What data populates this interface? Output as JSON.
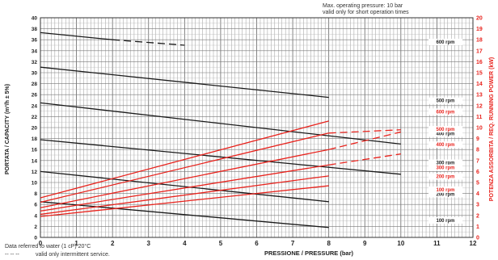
{
  "chart_data": {
    "type": "line",
    "header_note": [
      "Max. operating pressure: 10 bar",
      "valid only for short operation times"
    ],
    "xlabel": "PRESSIONE / PRESSURE (bar)",
    "ylabel_left": "PORTATA / CAPACITY (m³/h ± 5%)",
    "ylabel_right": "POTENZA ASSORBITA / REQ. RUNNING POWER (kW)",
    "footnotes": [
      "Data referred to water (1 cP) 20°C",
      "valid only intermittent service."
    ],
    "footnote_dash_glyph": "-- -- --",
    "x": {
      "min": 0,
      "max": 12,
      "ticks": [
        0,
        1,
        2,
        3,
        4,
        5,
        6,
        7,
        8,
        9,
        10,
        11,
        12
      ]
    },
    "y_left": {
      "min": 0,
      "max": 40,
      "ticks": [
        0,
        2,
        4,
        6,
        8,
        10,
        12,
        14,
        16,
        18,
        20,
        22,
        24,
        26,
        28,
        30,
        32,
        34,
        36,
        38,
        40
      ]
    },
    "y_right": {
      "min": 0,
      "max": 20,
      "ticks": [
        0,
        1,
        2,
        3,
        4,
        5,
        6,
        7,
        8,
        9,
        10,
        11,
        12,
        13,
        14,
        15,
        16,
        17,
        18,
        19,
        20
      ]
    },
    "grid": true,
    "colors": {
      "capacity": "#1a1a1a",
      "power": "#e8231d",
      "right_axis": "#e8231d",
      "grid": "#9a9a9a"
    },
    "capacity_series": [
      {
        "label": "100 rpm",
        "points": [
          [
            0,
            6.5
          ],
          [
            8,
            1.8
          ]
        ],
        "label_y": 2.8
      },
      {
        "label": "200 rpm",
        "points": [
          [
            0,
            12
          ],
          [
            8,
            6.5
          ]
        ],
        "label_y": 7.6
      },
      {
        "label": "300 rpm",
        "points": [
          [
            0,
            17.8
          ],
          [
            10,
            11.5
          ]
        ],
        "label_y": 13.3
      },
      {
        "label": "400 rpm",
        "points": [
          [
            0,
            24.5
          ],
          [
            10,
            17
          ]
        ],
        "label_y": 18.6
      },
      {
        "label": "500 rpm",
        "points": [
          [
            0,
            31
          ],
          [
            8,
            25.5
          ]
        ],
        "label_y": 24.6
      },
      {
        "label": "600 rpm",
        "points": [
          [
            0,
            37.3
          ],
          [
            2,
            36
          ],
          [
            4,
            35
          ]
        ],
        "dashed_from": 1,
        "label_y": 35.3
      }
    ],
    "power_series": [
      {
        "label": "100 rpm",
        "points": [
          [
            0,
            1.9
          ],
          [
            8,
            4.7
          ]
        ],
        "dashed_from": null,
        "label_y": 8.4
      },
      {
        "label": "200 rpm",
        "points": [
          [
            0,
            2.1
          ],
          [
            8,
            5.6
          ]
        ],
        "dashed_from": null,
        "label_y": 10.8
      },
      {
        "label": "300 rpm",
        "points": [
          [
            0,
            2.4
          ],
          [
            8,
            6.6
          ],
          [
            10,
            7.6
          ]
        ],
        "dashed_from": 1,
        "label_y": 12.4
      },
      {
        "label": "400 rpm",
        "points": [
          [
            0,
            2.7
          ],
          [
            8,
            8
          ],
          [
            10,
            9.6
          ]
        ],
        "dashed_from": 1,
        "label_y": 16.6
      },
      {
        "label": "500 rpm",
        "points": [
          [
            0,
            3.2
          ],
          [
            8,
            9.5
          ],
          [
            10,
            9.8
          ]
        ],
        "dashed_from": 1,
        "label_y": 19.4
      },
      {
        "label": "600 rpm",
        "points": [
          [
            0,
            3.6
          ],
          [
            8,
            10.6
          ]
        ],
        "dashed_from": null,
        "label_y": 22.6
      }
    ]
  }
}
